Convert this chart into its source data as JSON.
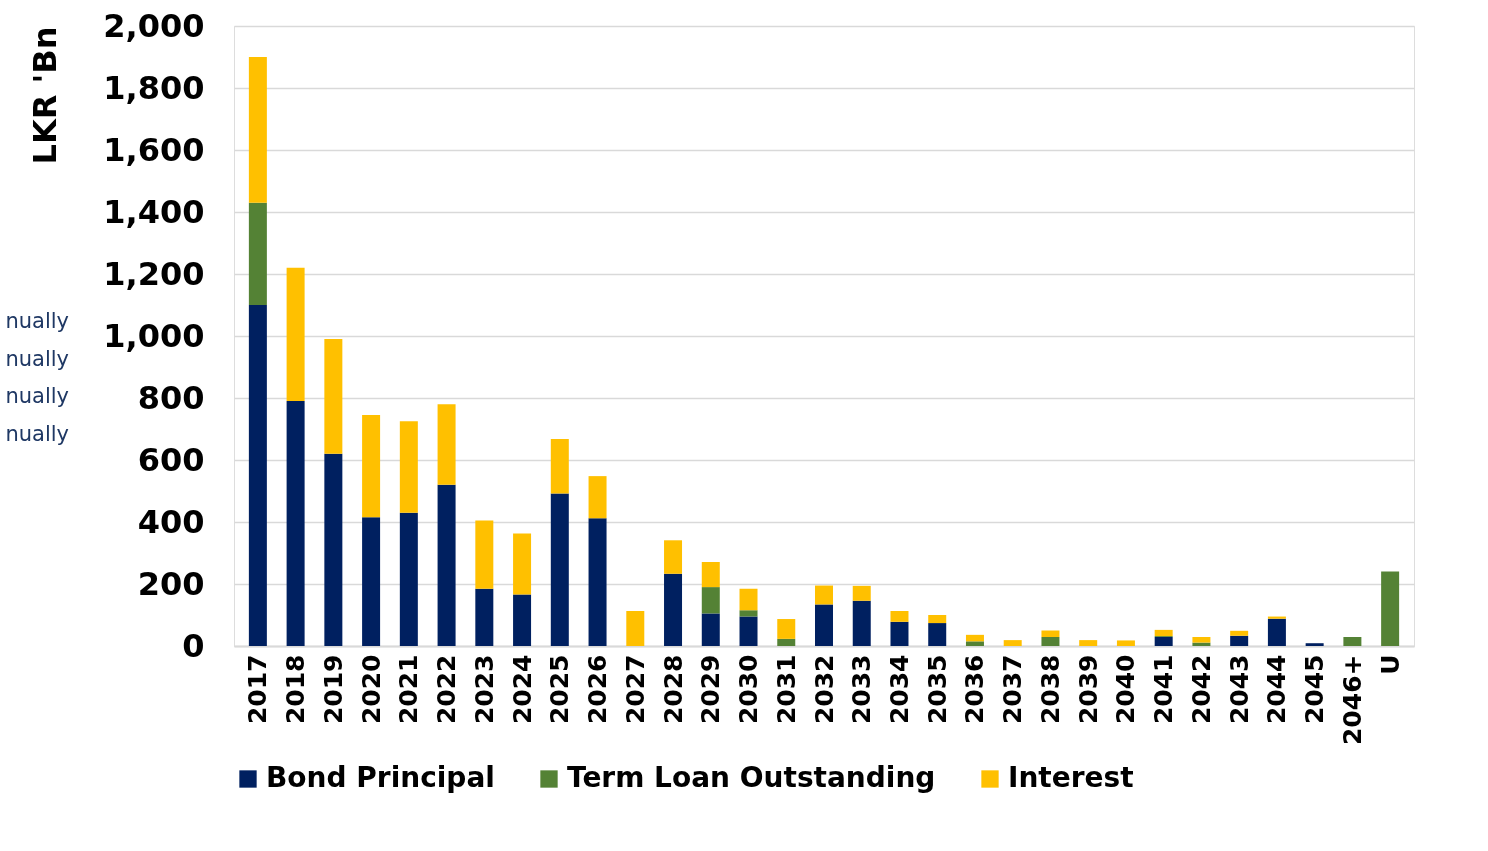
{
  "chart_data": {
    "type": "bar",
    "stacked": true,
    "ylabel": "LKR 'Bn",
    "categories": [
      "2017",
      "2018",
      "2019",
      "2020",
      "2021",
      "2022",
      "2023",
      "2024",
      "2025",
      "2026",
      "2027",
      "2028",
      "2029",
      "2030",
      "2031",
      "2032",
      "2033",
      "2034",
      "2035",
      "2036",
      "2037",
      "2038",
      "2039",
      "2040",
      "2041",
      "2042",
      "2043",
      "2044",
      "2045",
      "2046+",
      "U"
    ],
    "series": [
      {
        "name": "Bond Principal",
        "color": "#002060",
        "values": [
          1100,
          790,
          620,
          415,
          430,
          520,
          185,
          166,
          492,
          412,
          null,
          233,
          105,
          95,
          null,
          134,
          146,
          78,
          74,
          null,
          null,
          null,
          null,
          null,
          29,
          null,
          33,
          88,
          9,
          null,
          null
        ]
      },
      {
        "name": "Term Loan Outstanding",
        "color": "#548235",
        "values": [
          330,
          null,
          null,
          null,
          null,
          null,
          null,
          null,
          null,
          null,
          null,
          null,
          85,
          20,
          23,
          null,
          null,
          null,
          null,
          15,
          null,
          29,
          null,
          null,
          3,
          11,
          null,
          null,
          null,
          29,
          240
        ]
      },
      {
        "name": "Interest",
        "color": "#ffc000",
        "values": [
          470,
          430,
          370,
          330,
          295,
          260,
          220,
          197,
          176,
          136,
          113,
          108,
          81,
          70,
          64,
          61,
          48,
          35,
          26,
          21,
          19,
          21,
          19,
          18,
          20,
          18,
          16,
          7,
          null,
          null,
          null
        ]
      }
    ],
    "ylim": [
      0,
      2000
    ],
    "yticks": [
      0,
      200,
      400,
      600,
      800,
      {
        "value": 1000,
        "label": "1,000"
      },
      {
        "value": 1200,
        "label": "1,200"
      },
      {
        "value": 1400,
        "label": "1,400"
      },
      {
        "value": 1600,
        "label": "1,600"
      },
      {
        "value": 1800,
        "label": "1,800"
      },
      {
        "value": 2000,
        "label": "2,000"
      }
    ],
    "grid": "y",
    "legend": "bottom",
    "annotations": [
      "nually",
      "nually",
      "nually",
      "nually"
    ]
  }
}
